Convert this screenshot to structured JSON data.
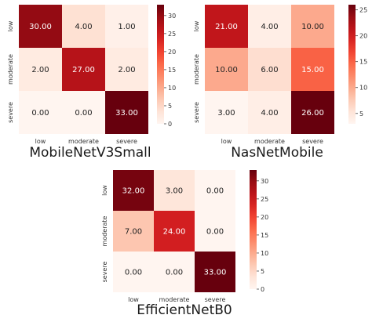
{
  "figure": {
    "captions": [
      "MobileNetV3Small",
      "NasNetMobile",
      "EfficientNetB0"
    ]
  },
  "chart_data": [
    {
      "type": "heatmap",
      "title": "",
      "caption": "MobileNetV3Small",
      "x_categories": [
        "low",
        "moderate",
        "severe"
      ],
      "y_categories": [
        "low",
        "moderate",
        "severe"
      ],
      "values": [
        [
          30,
          4,
          1
        ],
        [
          2,
          27,
          2
        ],
        [
          0,
          0,
          33
        ]
      ],
      "cell_labels": [
        [
          "30.00",
          "4.00",
          "1.00"
        ],
        [
          "2.00",
          "27.00",
          "2.00"
        ],
        [
          "0.00",
          "0.00",
          "33.00"
        ]
      ],
      "colorbar": {
        "min": 0,
        "max": 33,
        "ticks": [
          0,
          5,
          10,
          15,
          20,
          25,
          30
        ],
        "colormap": "Reds"
      }
    },
    {
      "type": "heatmap",
      "title": "",
      "caption": "NasNetMobile",
      "x_categories": [
        "low",
        "moderate",
        "severe"
      ],
      "y_categories": [
        "low",
        "moderate",
        "severe"
      ],
      "values": [
        [
          21,
          4,
          10
        ],
        [
          10,
          6,
          15
        ],
        [
          3,
          4,
          26
        ]
      ],
      "cell_labels": [
        [
          "21.00",
          "4.00",
          "10.00"
        ],
        [
          "10.00",
          "6.00",
          "15.00"
        ],
        [
          "3.00",
          "4.00",
          "26.00"
        ]
      ],
      "colorbar": {
        "min": 3,
        "max": 26,
        "ticks": [
          5,
          10,
          15,
          20,
          25
        ],
        "colormap": "Reds"
      }
    },
    {
      "type": "heatmap",
      "title": "",
      "caption": "EfficientNetB0",
      "x_categories": [
        "low",
        "moderate",
        "severe"
      ],
      "y_categories": [
        "low",
        "moderate",
        "severe"
      ],
      "values": [
        [
          32,
          3,
          0
        ],
        [
          7,
          24,
          0
        ],
        [
          0,
          0,
          33
        ]
      ],
      "cell_labels": [
        [
          "32.00",
          "3.00",
          "0.00"
        ],
        [
          "7.00",
          "24.00",
          "0.00"
        ],
        [
          "0.00",
          "0.00",
          "33.00"
        ]
      ],
      "colorbar": {
        "min": 0,
        "max": 33,
        "ticks": [
          0,
          5,
          10,
          15,
          20,
          25,
          30
        ],
        "colormap": "Reds"
      }
    }
  ]
}
